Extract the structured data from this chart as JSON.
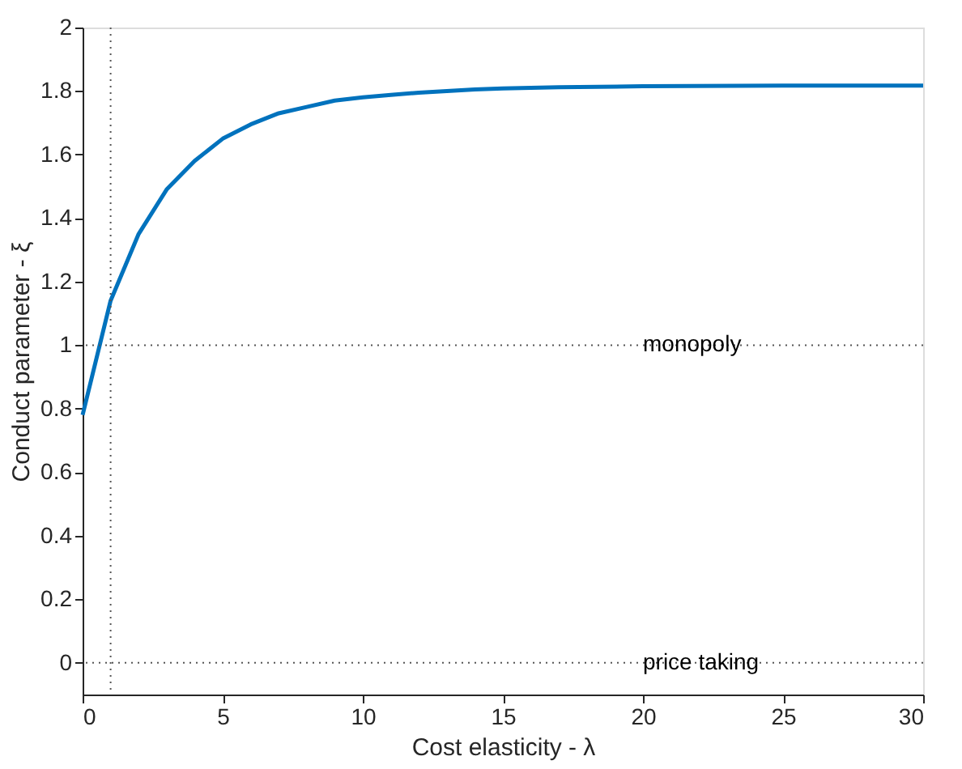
{
  "chart_data": {
    "type": "line",
    "xlabel": "Cost elasticity - λ",
    "ylabel": "Conduct parameter - ξ",
    "x": [
      0,
      1,
      2,
      3,
      4,
      5,
      6,
      7,
      8,
      9,
      10,
      11,
      12,
      13,
      14,
      15,
      17,
      20,
      25,
      30
    ],
    "series": [
      {
        "color": "#0072bd",
        "values": [
          0.78,
          1.14,
          1.35,
          1.49,
          1.58,
          1.65,
          1.695,
          1.73,
          1.75,
          1.77,
          1.78,
          1.788,
          1.795,
          1.8,
          1.805,
          1.808,
          1.812,
          1.815,
          1.817,
          1.817
        ]
      }
    ],
    "xlim": [
      0,
      30
    ],
    "xticks": [
      0,
      5,
      10,
      15,
      20,
      25,
      30
    ],
    "ylim": [
      -0.1,
      2
    ],
    "yticks": [
      0,
      0.2,
      0.4,
      0.6,
      0.8,
      1,
      1.2,
      1.4,
      1.6,
      1.8,
      2
    ],
    "ref_lines": [
      {
        "axis": "x",
        "value": 1,
        "label": null,
        "line_style": "dotted"
      },
      {
        "axis": "y",
        "value": 1,
        "label": "monopoly",
        "line_style": "dotted"
      },
      {
        "axis": "y",
        "value": 0,
        "label": "price taking",
        "line_style": "dotted"
      }
    ],
    "grid": false,
    "legend": false,
    "marker": "none",
    "line_style": "solid"
  }
}
